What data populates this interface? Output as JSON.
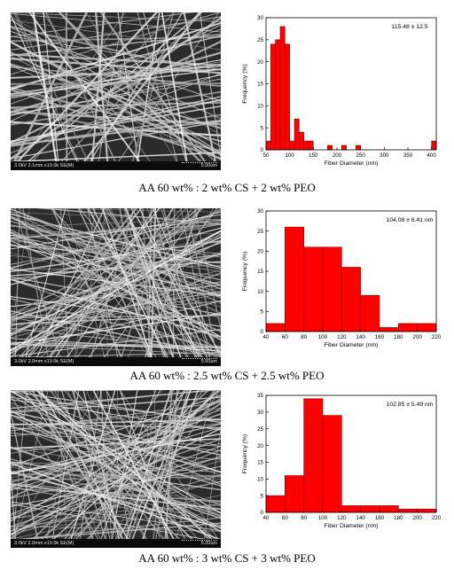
{
  "panels": [
    {
      "caption": "AA 60 wt% : 2 wt% CS + 2 wt% PEO",
      "sem_info": "3.0kV 2.1mm x10.0k SE(M)",
      "sem_scale": "5.00um"
    },
    {
      "caption": "AA 60 wt% : 2.5 wt% CS + 2.5 wt% PEO",
      "sem_info": "3.0kV 2.0mm x10.0k SE(M)",
      "sem_scale": "5.00um"
    },
    {
      "caption": "AA 60 wt% : 3 wt% CS + 3 wt% PEO",
      "sem_info": "3.0kV 2.0mm x10.0k SE(M)",
      "sem_scale": "5.00um"
    }
  ],
  "colors": {
    "bar": "#ff0000",
    "bar_edge": "#8a0000",
    "axis": "#000000"
  },
  "chart_data": [
    {
      "type": "bar",
      "annotation": "115.48 ± 12.5",
      "xlabel": "Fiber Diameter (nm)",
      "ylabel": "Frequency (%)",
      "xlim": [
        50,
        410
      ],
      "ylim": [
        0,
        30
      ],
      "xticks": [
        50,
        100,
        150,
        200,
        250,
        300,
        350,
        400
      ],
      "yticks": [
        0,
        5,
        10,
        15,
        20,
        25,
        30
      ],
      "bin_width": 10,
      "bins": [
        {
          "x": 55,
          "value": 2
        },
        {
          "x": 65,
          "value": 24
        },
        {
          "x": 75,
          "value": 25
        },
        {
          "x": 85,
          "value": 28
        },
        {
          "x": 95,
          "value": 24
        },
        {
          "x": 105,
          "value": 2
        },
        {
          "x": 115,
          "value": 7
        },
        {
          "x": 125,
          "value": 4
        },
        {
          "x": 135,
          "value": 2
        },
        {
          "x": 145,
          "value": 2
        },
        {
          "x": 185,
          "value": 1
        },
        {
          "x": 215,
          "value": 1
        },
        {
          "x": 245,
          "value": 1
        },
        {
          "x": 405,
          "value": 2
        }
      ]
    },
    {
      "type": "bar",
      "annotation": "104.08 ± 6.41 nm",
      "xlabel": "Fiber Diameter (nm)",
      "ylabel": "Frequency (%)",
      "xlim": [
        40,
        220
      ],
      "ylim": [
        0,
        30
      ],
      "xticks": [
        40,
        60,
        80,
        100,
        120,
        140,
        160,
        180,
        200,
        220
      ],
      "yticks": [
        0,
        5,
        10,
        15,
        20,
        25,
        30
      ],
      "bin_width": 20,
      "bins": [
        {
          "x": 50,
          "value": 2
        },
        {
          "x": 70,
          "value": 26
        },
        {
          "x": 90,
          "value": 21
        },
        {
          "x": 110,
          "value": 21
        },
        {
          "x": 130,
          "value": 16
        },
        {
          "x": 150,
          "value": 9
        },
        {
          "x": 170,
          "value": 1
        },
        {
          "x": 190,
          "value": 2
        },
        {
          "x": 210,
          "value": 2
        }
      ]
    },
    {
      "type": "bar",
      "annotation": "102.85 ± 5.49 nm",
      "xlabel": "Fiber Diameter (nm)",
      "ylabel": "Frequency (%)",
      "xlim": [
        40,
        220
      ],
      "ylim": [
        0,
        35
      ],
      "xticks": [
        40,
        60,
        80,
        100,
        120,
        140,
        160,
        180,
        200,
        220
      ],
      "yticks": [
        0,
        5,
        10,
        15,
        20,
        25,
        30,
        35
      ],
      "bin_width": 20,
      "bins": [
        {
          "x": 50,
          "value": 5
        },
        {
          "x": 70,
          "value": 11
        },
        {
          "x": 90,
          "value": 34
        },
        {
          "x": 110,
          "value": 29
        },
        {
          "x": 130,
          "value": 2
        },
        {
          "x": 150,
          "value": 2
        },
        {
          "x": 170,
          "value": 2
        },
        {
          "x": 190,
          "value": 1
        },
        {
          "x": 210,
          "value": 1
        }
      ]
    }
  ]
}
